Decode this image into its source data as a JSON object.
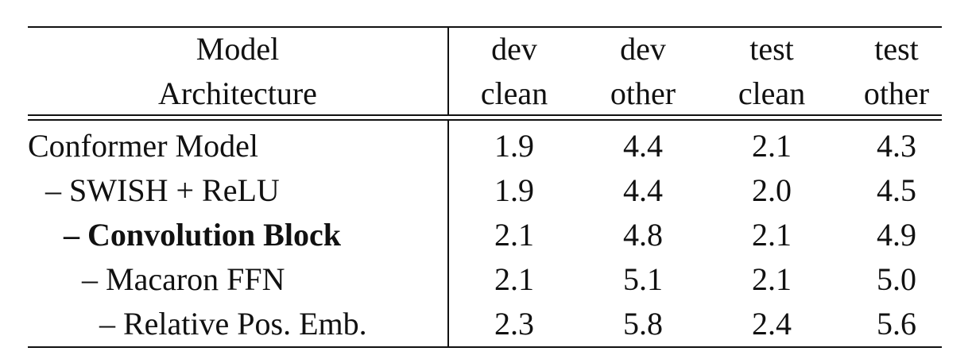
{
  "table": {
    "header": {
      "model": [
        "Model",
        "Architecture"
      ],
      "columns": [
        [
          "dev",
          "clean"
        ],
        [
          "dev",
          "other"
        ],
        [
          "test",
          "clean"
        ],
        [
          "test",
          "other"
        ]
      ]
    },
    "rows": [
      {
        "label": "Conformer Model",
        "values": [
          "1.9",
          "4.4",
          "2.1",
          "4.3"
        ]
      },
      {
        "label": "– SWISH + ReLU",
        "values": [
          "1.9",
          "4.4",
          "2.0",
          "4.5"
        ]
      },
      {
        "label": "– Convolution Block",
        "values": [
          "2.1",
          "4.8",
          "2.1",
          "4.9"
        ]
      },
      {
        "label": "– Macaron FFN",
        "values": [
          "2.1",
          "5.1",
          "2.1",
          "5.0"
        ]
      },
      {
        "label": "– Relative Pos. Emb.",
        "values": [
          "2.3",
          "5.8",
          "2.4",
          "5.6"
        ]
      }
    ]
  }
}
